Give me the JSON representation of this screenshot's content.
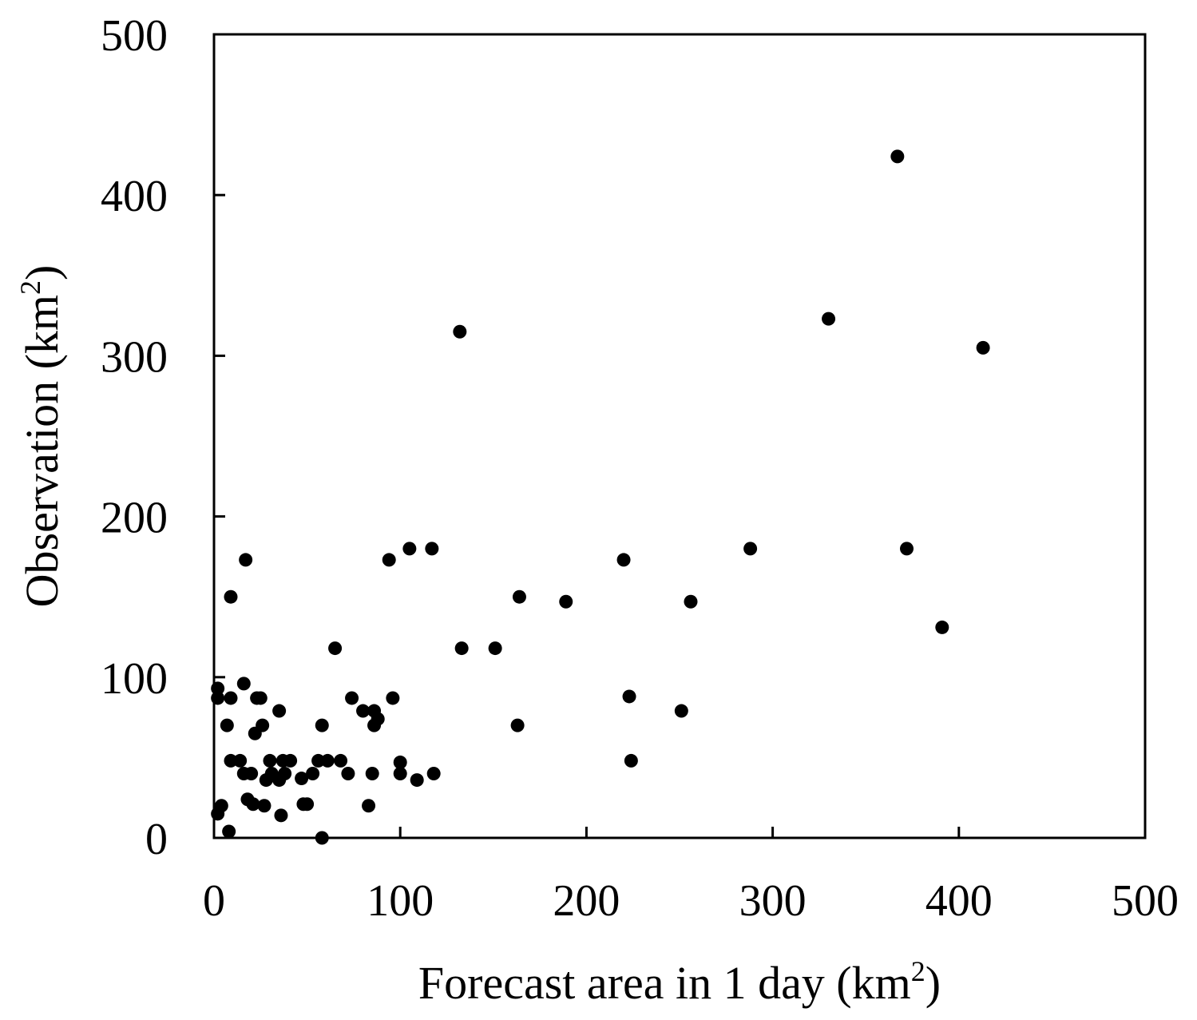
{
  "chart_data": {
    "type": "scatter",
    "xlabel": "Forecast area in 1 day (km2)",
    "ylabel": "Observation (km2)",
    "xlabel_parts": {
      "main": "Forecast area in 1 day (km",
      "sup": "2",
      "end": ")"
    },
    "ylabel_parts": {
      "main": "Observation (km",
      "sup": "2",
      "end": ")"
    },
    "xlim": [
      0,
      500
    ],
    "ylim": [
      0,
      500
    ],
    "xticks": [
      0,
      100,
      200,
      300,
      400,
      500
    ],
    "yticks": [
      0,
      100,
      200,
      300,
      400,
      500
    ],
    "xtick_labels": [
      "0",
      "100",
      "200",
      "300",
      "400",
      "500"
    ],
    "ytick_labels": [
      "0",
      "100",
      "200",
      "300",
      "400",
      "500"
    ],
    "grid": false,
    "marker_color": "#000000",
    "points": [
      {
        "x": 2,
        "y": 93
      },
      {
        "x": 2,
        "y": 87
      },
      {
        "x": 2,
        "y": 15
      },
      {
        "x": 4,
        "y": 20
      },
      {
        "x": 7,
        "y": 70
      },
      {
        "x": 8,
        "y": 4
      },
      {
        "x": 9,
        "y": 150
      },
      {
        "x": 9,
        "y": 87
      },
      {
        "x": 9,
        "y": 48
      },
      {
        "x": 14,
        "y": 48
      },
      {
        "x": 16,
        "y": 96
      },
      {
        "x": 16,
        "y": 40
      },
      {
        "x": 17,
        "y": 173
      },
      {
        "x": 18,
        "y": 24
      },
      {
        "x": 20,
        "y": 40
      },
      {
        "x": 21,
        "y": 21
      },
      {
        "x": 22,
        "y": 65
      },
      {
        "x": 23,
        "y": 87
      },
      {
        "x": 25,
        "y": 87
      },
      {
        "x": 26,
        "y": 70
      },
      {
        "x": 27,
        "y": 20
      },
      {
        "x": 28,
        "y": 36
      },
      {
        "x": 30,
        "y": 48
      },
      {
        "x": 31,
        "y": 40
      },
      {
        "x": 35,
        "y": 79
      },
      {
        "x": 35,
        "y": 36
      },
      {
        "x": 36,
        "y": 14
      },
      {
        "x": 37,
        "y": 48
      },
      {
        "x": 38,
        "y": 40
      },
      {
        "x": 41,
        "y": 48
      },
      {
        "x": 47,
        "y": 37
      },
      {
        "x": 48,
        "y": 21
      },
      {
        "x": 50,
        "y": 21
      },
      {
        "x": 53,
        "y": 40
      },
      {
        "x": 56,
        "y": 48
      },
      {
        "x": 58,
        "y": 70
      },
      {
        "x": 58,
        "y": 0
      },
      {
        "x": 61,
        "y": 48
      },
      {
        "x": 65,
        "y": 118
      },
      {
        "x": 68,
        "y": 48
      },
      {
        "x": 72,
        "y": 40
      },
      {
        "x": 74,
        "y": 87
      },
      {
        "x": 80,
        "y": 79
      },
      {
        "x": 83,
        "y": 20
      },
      {
        "x": 85,
        "y": 40
      },
      {
        "x": 86,
        "y": 79
      },
      {
        "x": 86,
        "y": 70
      },
      {
        "x": 88,
        "y": 74
      },
      {
        "x": 94,
        "y": 173
      },
      {
        "x": 96,
        "y": 87
      },
      {
        "x": 100,
        "y": 47
      },
      {
        "x": 100,
        "y": 40
      },
      {
        "x": 105,
        "y": 180
      },
      {
        "x": 109,
        "y": 36
      },
      {
        "x": 117,
        "y": 180
      },
      {
        "x": 118,
        "y": 40
      },
      {
        "x": 132,
        "y": 315
      },
      {
        "x": 133,
        "y": 118
      },
      {
        "x": 151,
        "y": 118
      },
      {
        "x": 163,
        "y": 70
      },
      {
        "x": 164,
        "y": 150
      },
      {
        "x": 189,
        "y": 147
      },
      {
        "x": 220,
        "y": 173
      },
      {
        "x": 223,
        "y": 88
      },
      {
        "x": 224,
        "y": 48
      },
      {
        "x": 251,
        "y": 79
      },
      {
        "x": 256,
        "y": 147
      },
      {
        "x": 288,
        "y": 180
      },
      {
        "x": 330,
        "y": 323
      },
      {
        "x": 367,
        "y": 424
      },
      {
        "x": 372,
        "y": 180
      },
      {
        "x": 391,
        "y": 131
      },
      {
        "x": 413,
        "y": 305
      }
    ]
  }
}
